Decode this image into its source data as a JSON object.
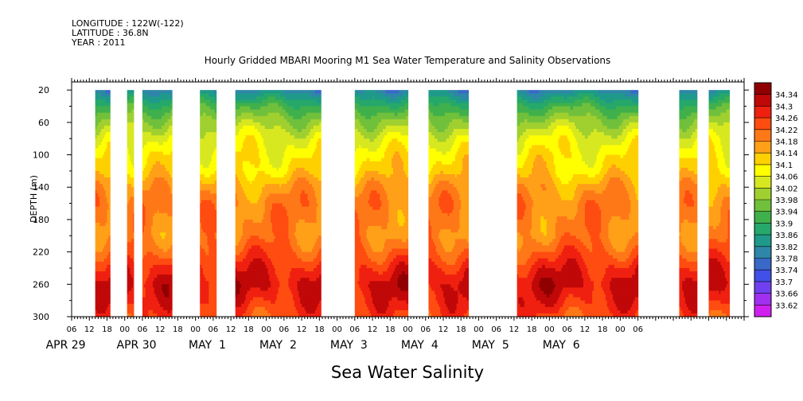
{
  "header": {
    "longitude": "LONGITUDE : 122W(-122)",
    "latitude": "LATITUDE : 36.8N",
    "year": "YEAR : 2011"
  },
  "chart_data": {
    "type": "heatmap",
    "title": "Hourly Gridded MBARI Mooring M1 Sea Water Temperature and Salinity Observations",
    "xlabel": "Sea Water Salinity",
    "ylabel": "DEPTH (m)",
    "ylim": [
      300,
      20
    ],
    "y_ticks": [
      20,
      60,
      100,
      140,
      180,
      220,
      260,
      300
    ],
    "x_hour_ticks": [
      "06",
      "12",
      "18",
      "00",
      "06",
      "12",
      "18",
      "00",
      "06",
      "12",
      "18",
      "00",
      "06",
      "12",
      "18",
      "00",
      "06",
      "12",
      "18",
      "00",
      "06",
      "12",
      "18",
      "00",
      "06",
      "12",
      "18",
      "00",
      "06",
      "12",
      "18",
      "00",
      "06"
    ],
    "x_day_labels": [
      "APR 29",
      "APR 30",
      "MAY  1",
      "MAY  2",
      "MAY  3",
      "MAY  4",
      "MAY  5",
      "MAY  6"
    ],
    "colorbar_levels": [
      "33.62",
      "33.66",
      "33.7",
      "33.74",
      "33.78",
      "33.82",
      "33.86",
      "33.9",
      "33.94",
      "33.98",
      "34.02",
      "34.06",
      "34.1",
      "34.14",
      "34.18",
      "34.22",
      "34.26",
      "34.3",
      "34.34"
    ],
    "colorbar_colors": [
      "#d020f0",
      "#a030f0",
      "#7040f0",
      "#4050e8",
      "#3868c8",
      "#2e86a8",
      "#1f9a8a",
      "#26a86a",
      "#40b04c",
      "#70c03c",
      "#a0d030",
      "#d8e820",
      "#ffff00",
      "#ffd000",
      "#ffa018",
      "#ff7818",
      "#ff4c10",
      "#f02010",
      "#c00808",
      "#900000"
    ],
    "grid": false,
    "legend": "right colorbar",
    "data_segments_hours_from_apr29_00": [
      [
        14,
        19
      ],
      [
        24.8,
        27
      ],
      [
        30,
        40
      ],
      [
        49.5,
        55
      ],
      [
        61.5,
        90.5
      ],
      [
        102,
        120
      ],
      [
        127,
        140.5
      ],
      [
        157,
        198
      ],
      [
        212,
        218
      ],
      [
        222,
        229
      ]
    ],
    "depth_profile": [
      {
        "depth": 20,
        "salinity": 33.8
      },
      {
        "depth": 40,
        "salinity": 33.92
      },
      {
        "depth": 60,
        "salinity": 34.0
      },
      {
        "depth": 80,
        "salinity": 34.06
      },
      {
        "depth": 100,
        "salinity": 34.09
      },
      {
        "depth": 120,
        "salinity": 34.11
      },
      {
        "depth": 140,
        "salinity": 34.16
      },
      {
        "depth": 160,
        "salinity": 34.19
      },
      {
        "depth": 180,
        "salinity": 34.19
      },
      {
        "depth": 200,
        "salinity": 34.19
      },
      {
        "depth": 220,
        "salinity": 34.23
      },
      {
        "depth": 240,
        "salinity": 34.28
      },
      {
        "depth": 260,
        "salinity": 34.31
      },
      {
        "depth": 280,
        "salinity": 34.28
      },
      {
        "depth": 300,
        "salinity": 34.24
      }
    ]
  }
}
